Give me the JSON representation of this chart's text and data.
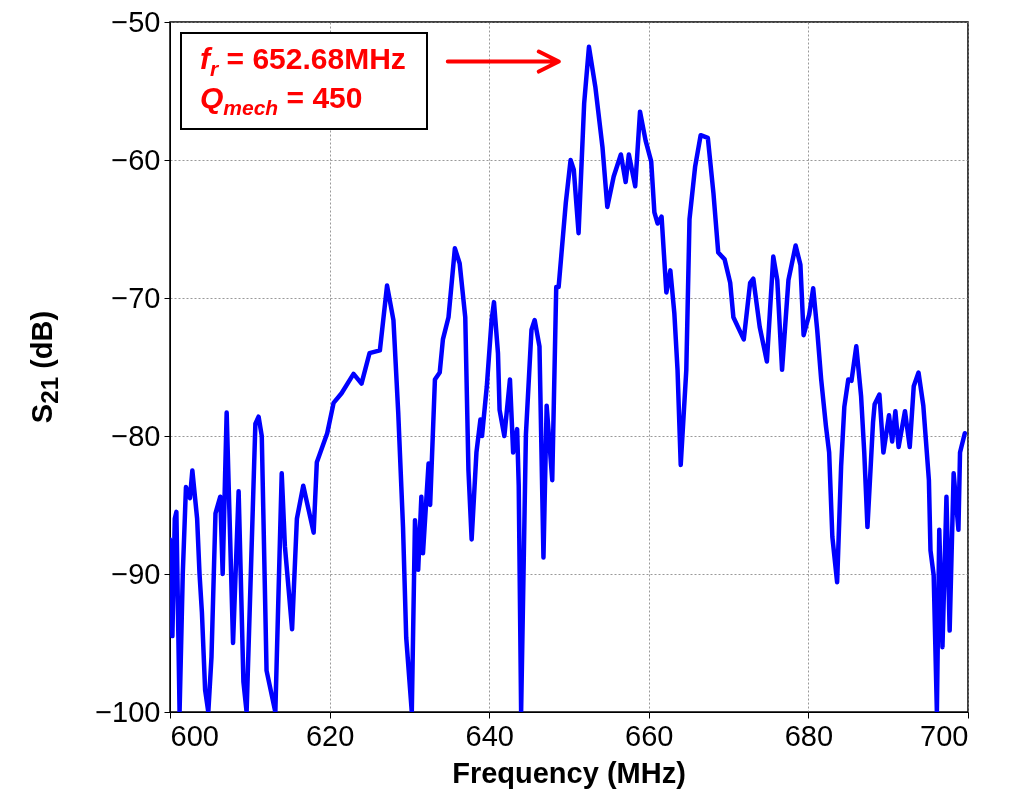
{
  "chart_data": {
    "type": "line",
    "xlabel": "Frequency (MHz)",
    "ylabel": "S$_{21}$ (dB)",
    "xlim": [
      600,
      700
    ],
    "ylim": [
      -100,
      -50
    ],
    "xticks": [
      600,
      620,
      640,
      660,
      680,
      700
    ],
    "yticks": [
      -100,
      -90,
      -80,
      -70,
      -60,
      -50
    ],
    "grid": true,
    "x": [
      600.0,
      600.3,
      600.6,
      600.8,
      601.2,
      601.6,
      602.0,
      602.5,
      602.8,
      603.4,
      603.7,
      604.0,
      604.4,
      604.8,
      605.2,
      605.7,
      606.3,
      606.6,
      607.1,
      607.9,
      608.6,
      609.2,
      609.6,
      610.7,
      611.1,
      611.5,
      612.1,
      613.2,
      614.0,
      614.4,
      615.3,
      615.9,
      616.7,
      618.0,
      618.4,
      619.7,
      620.5,
      621.5,
      623.0,
      624.0,
      625.0,
      626.3,
      627.2,
      628.0,
      628.6,
      629.2,
      629.6,
      630.3,
      630.7,
      631.1,
      631.5,
      631.7,
      632.4,
      632.6,
      633.2,
      633.8,
      634.2,
      634.9,
      635.7,
      636.3,
      637.0,
      637.4,
      637.8,
      638.4,
      638.9,
      639.1,
      639.7,
      640.3,
      640.6,
      641.1,
      641.3,
      641.9,
      642.6,
      643.0,
      643.5,
      643.7,
      644.0,
      644.6,
      645.3,
      645.7,
      646.3,
      646.8,
      647.2,
      647.9,
      648.4,
      648.7,
      649.6,
      650.2,
      650.6,
      651.2,
      651.9,
      652.5,
      653.3,
      654.2,
      654.8,
      655.6,
      656.5,
      657.1,
      657.5,
      658.3,
      658.9,
      659.6,
      660.3,
      660.7,
      661.1,
      661.6,
      662.2,
      662.7,
      663.2,
      663.6,
      664.0,
      664.7,
      665.1,
      665.8,
      666.5,
      667.4,
      668.1,
      668.7,
      669.5,
      670.2,
      670.6,
      671.9,
      672.7,
      673.1,
      673.9,
      674.8,
      675.6,
      676.1,
      676.7,
      677.5,
      678.4,
      679.0,
      679.4,
      680.1,
      680.6,
      681.1,
      681.6,
      682.2,
      682.6,
      683.0,
      683.6,
      684.1,
      684.5,
      685.0,
      685.4,
      686.0,
      686.6,
      687.0,
      687.4,
      688.1,
      688.3,
      688.9,
      689.4,
      690.1,
      690.5,
      690.9,
      691.3,
      692.1,
      692.7,
      693.2,
      693.8,
      694.4,
      695.1,
      695.3,
      695.7,
      696.1,
      696.4,
      696.8,
      697.3,
      697.7,
      698.2,
      698.8,
      699.0,
      699.6
    ],
    "series": [
      {
        "color": "#0000ff",
        "values": [
          -87.5,
          -94.5,
          -86,
          -85.5,
          -100,
          -90,
          -83.7,
          -84.5,
          -82.5,
          -86,
          -90,
          -92.8,
          -98.4,
          -100,
          -96,
          -85.6,
          -84.4,
          -90,
          -78.3,
          -95,
          -84,
          -97.8,
          -100,
          -79.1,
          -78.6,
          -80,
          -97,
          -100,
          -82.7,
          -88,
          -94,
          -86,
          -83.6,
          -87,
          -81.9,
          -79.8,
          -77.6,
          -76.9,
          -75.5,
          -76.2,
          -74,
          -73.8,
          -69.1,
          -71.6,
          -78.3,
          -86.6,
          -94.6,
          -100,
          -86.1,
          -89.7,
          -84.4,
          -88.5,
          -82,
          -85,
          -75.9,
          -75.4,
          -73,
          -71.4,
          -66.4,
          -67.5,
          -71.4,
          -82.5,
          -87.5,
          -81.2,
          -78.8,
          -80,
          -76.4,
          -71.6,
          -70.3,
          -74,
          -78.1,
          -80,
          -75.9,
          -81.2,
          -79.5,
          -83.6,
          -100,
          -79.9,
          -72.3,
          -71.6,
          -73.5,
          -88.8,
          -77.8,
          -83.2,
          -69.2,
          -69.2,
          -63.1,
          -60,
          -60.7,
          -65.3,
          -55.9,
          -51.8,
          -54.7,
          -59.1,
          -63.4,
          -61.2,
          -59.6,
          -61.6,
          -59.6,
          -61.9,
          -56.5,
          -58.6,
          -60.1,
          -63.8,
          -64.6,
          -64.1,
          -69.6,
          -68,
          -71.1,
          -75.2,
          -82.1,
          -75.2,
          -64.3,
          -60.5,
          -58.2,
          -58.4,
          -62.4,
          -66.7,
          -67.2,
          -68.9,
          -71.4,
          -73,
          -68.9,
          -68.6,
          -72.1,
          -74.6,
          -67,
          -68.7,
          -75.2,
          -68.7,
          -66.2,
          -67.6,
          -72.7,
          -71.2,
          -69.3,
          -72.3,
          -75.9,
          -79.3,
          -81.2,
          -87.3,
          -90.6,
          -82.2,
          -77.9,
          -75.9,
          -76,
          -73.5,
          -77.1,
          -81.2,
          -86.6,
          -79,
          -77.7,
          -77,
          -81.2,
          -78.5,
          -80.4,
          -78.2,
          -80.8,
          -78.2,
          -80.8,
          -76.4,
          -75.4,
          -77.8,
          -83.2,
          -88.3,
          -90.1,
          -100,
          -86.8,
          -95.3,
          -84.4,
          -94.1,
          -82.7,
          -86.8,
          -81.2,
          -79.8
        ]
      }
    ],
    "annotations": [
      "f$_{r}$ = 652.68MHz",
      "Q$_{mech}$ = 450"
    ]
  }
}
